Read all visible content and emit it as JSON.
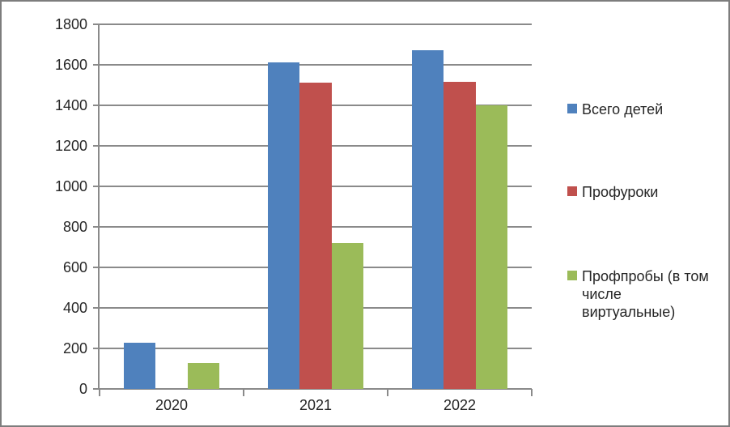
{
  "chart_data": {
    "type": "bar",
    "categories": [
      "2020",
      "2021",
      "2022"
    ],
    "series": [
      {
        "name": "Всего детей",
        "color": "#4F81BD",
        "values": [
          230,
          1612,
          1673
        ]
      },
      {
        "name": "Профуроки",
        "color": "#C0504D",
        "values": [
          0,
          1512,
          1517
        ]
      },
      {
        "name": "Профпробы (в том числе виртуальные)",
        "color": "#9BBB59",
        "values": [
          130,
          720,
          1400
        ]
      }
    ],
    "ylim": [
      0,
      1800
    ],
    "ytick_step": 200,
    "ytick_labels": [
      "0",
      "200",
      "400",
      "600",
      "800",
      "1000",
      "1200",
      "1400",
      "1600",
      "1800"
    ],
    "grid": "horizontal",
    "legend_position": "right"
  },
  "legend": {
    "items": [
      {
        "label": "Всего детей",
        "color": "#4F81BD"
      },
      {
        "label": "Профуроки",
        "color": "#C0504D"
      },
      {
        "label": "Профпробы (в том\nчисле\nвиртуальные)",
        "color": "#9BBB59"
      }
    ]
  },
  "styles": {
    "background_color": "#ffffff",
    "border_color": "#7d7d7d",
    "axis_color": "#8a8a8a",
    "grid_color": "#8a8a8a",
    "text_color": "#262626"
  }
}
